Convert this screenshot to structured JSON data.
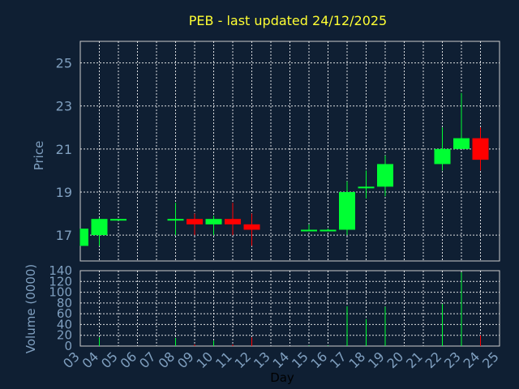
{
  "chart_data": {
    "type": "candlestick",
    "title": "PEB - last updated 24/12/2025",
    "ylabel_price": "Price",
    "ylabel_volume": "Volume (0000)",
    "xlabel": "Day",
    "x_ticks": [
      "03",
      "04",
      "05",
      "06",
      "07",
      "08",
      "09",
      "10",
      "11",
      "12",
      "13",
      "14",
      "15",
      "16",
      "17",
      "18",
      "19",
      "20",
      "21",
      "22",
      "23",
      "24",
      "25"
    ],
    "price_ylim": [
      15.8,
      26.0
    ],
    "price_ticks": [
      17,
      19,
      21,
      23,
      25
    ],
    "volume_ylim": [
      0,
      140
    ],
    "volume_ticks": [
      0,
      20,
      40,
      60,
      80,
      100,
      120,
      140
    ],
    "grid": true,
    "colors": {
      "up": "#00ff33",
      "down": "#ff0000",
      "background": "#0f1f33",
      "title": "#ffff33",
      "axis_text": "#7f9fbf"
    },
    "candles": [
      {
        "day": "03",
        "open": 16.5,
        "high": 17.3,
        "low": 16.5,
        "close": 17.3,
        "volume": 0
      },
      {
        "day": "04",
        "open": 17.0,
        "high": 17.8,
        "low": 16.5,
        "close": 17.75,
        "volume": 16
      },
      {
        "day": "05",
        "open": 17.7,
        "high": 17.75,
        "low": 17.7,
        "close": 17.75,
        "volume": 0
      },
      {
        "day": "08",
        "open": 17.7,
        "high": 18.5,
        "low": 17.0,
        "close": 17.75,
        "volume": 15
      },
      {
        "day": "09",
        "open": 17.75,
        "high": 18.0,
        "low": 17.0,
        "close": 17.5,
        "volume": 3
      },
      {
        "day": "10",
        "open": 17.5,
        "high": 17.9,
        "low": 17.0,
        "close": 17.75,
        "volume": 10
      },
      {
        "day": "11",
        "open": 17.75,
        "high": 18.5,
        "low": 17.0,
        "close": 17.5,
        "volume": 3
      },
      {
        "day": "12",
        "open": 17.5,
        "high": 18.0,
        "low": 16.5,
        "close": 17.25,
        "volume": 16
      },
      {
        "day": "15",
        "open": 17.2,
        "high": 17.5,
        "low": 17.2,
        "close": 17.25,
        "volume": 1
      },
      {
        "day": "16",
        "open": 17.2,
        "high": 17.3,
        "low": 17.2,
        "close": 17.25,
        "volume": 1
      },
      {
        "day": "17",
        "open": 17.25,
        "high": 19.5,
        "low": 17.0,
        "close": 19.0,
        "volume": 74
      },
      {
        "day": "18",
        "open": 19.2,
        "high": 20.0,
        "low": 18.7,
        "close": 19.25,
        "volume": 50
      },
      {
        "day": "19",
        "open": 19.25,
        "high": 20.7,
        "low": 18.8,
        "close": 20.3,
        "volume": 73
      },
      {
        "day": "22",
        "open": 20.3,
        "high": 22.0,
        "low": 20.0,
        "close": 21.0,
        "volume": 78
      },
      {
        "day": "23",
        "open": 21.0,
        "high": 23.6,
        "low": 21.0,
        "close": 21.5,
        "volume": 137
      },
      {
        "day": "24",
        "open": 21.5,
        "high": 22.0,
        "low": 20.0,
        "close": 20.5,
        "volume": 20
      }
    ]
  }
}
